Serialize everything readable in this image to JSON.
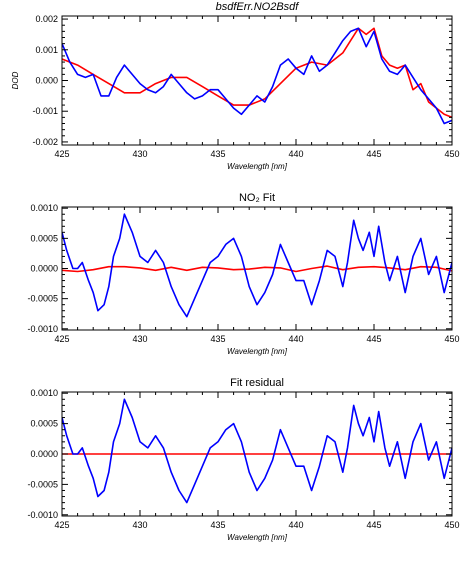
{
  "figure": {
    "background": "#ffffff",
    "axis_color": "#000000"
  },
  "chart_data": [
    {
      "type": "line",
      "title": "bsdfErr.NO2Bsdf",
      "title_italic": true,
      "xlabel": "Wavelength [nm]",
      "ylabel": "DOD",
      "xlim": [
        425,
        450
      ],
      "ylim": [
        -0.0021,
        0.0021
      ],
      "xticks": [
        425,
        430,
        435,
        440,
        445,
        450
      ],
      "xtick_labels": [
        "425",
        "430",
        "435",
        "440",
        "445",
        "450"
      ],
      "yticks": [
        -0.002,
        -0.001,
        0.0,
        0.001,
        0.002
      ],
      "ytick_labels": [
        "-0.002",
        "-0.001",
        "0.000",
        "0.001",
        "0.002"
      ],
      "grid": false,
      "series": [
        {
          "color": "#ff0000",
          "x": [
            425,
            426,
            427,
            428,
            429,
            430,
            431,
            432,
            433,
            434,
            435,
            436,
            437,
            438,
            439,
            440,
            441,
            442,
            442.5,
            443,
            443.5,
            444,
            444.5,
            445,
            445.5,
            446,
            446.5,
            447,
            447.5,
            448,
            448.5,
            449,
            449.5,
            450
          ],
          "y": [
            0.0007,
            0.0005,
            0.0002,
            -0.0001,
            -0.0004,
            -0.0004,
            -0.0001,
            0.0001,
            0.0001,
            -0.0002,
            -0.0005,
            -0.0008,
            -0.0008,
            -0.0006,
            -0.0001,
            0.0004,
            0.0006,
            0.0005,
            0.0007,
            0.0009,
            0.0013,
            0.0017,
            0.0015,
            0.0017,
            0.0008,
            0.0005,
            0.0004,
            0.0005,
            -0.0003,
            -0.0001,
            -0.0007,
            -0.0009,
            -0.0011,
            -0.0012
          ]
        },
        {
          "color": "#0000ff",
          "x": [
            425,
            425.5,
            426,
            426.5,
            427,
            427.5,
            428,
            428.5,
            429,
            429.5,
            430,
            430.5,
            431,
            431.5,
            432,
            432.5,
            433,
            433.5,
            434,
            434.5,
            435,
            435.5,
            436,
            436.5,
            437,
            437.5,
            438,
            438.5,
            439,
            439.5,
            440,
            440.5,
            441,
            441.5,
            442,
            442.5,
            443,
            443.5,
            444,
            444.5,
            445,
            445.5,
            446,
            446.5,
            447,
            447.5,
            448,
            448.5,
            449,
            449.5,
            450
          ],
          "y": [
            0.0012,
            0.0006,
            0.0002,
            0.0001,
            0.0002,
            -0.0005,
            -0.0005,
            0.0001,
            0.0005,
            0.0002,
            -0.0001,
            -0.0003,
            -0.0004,
            -0.0002,
            0.0002,
            -0.0001,
            -0.0004,
            -0.0006,
            -0.0005,
            -0.0003,
            -0.0003,
            -0.0006,
            -0.0009,
            -0.0011,
            -0.0008,
            -0.0005,
            -0.0007,
            -0.0002,
            0.0005,
            0.0007,
            0.0004,
            0.0002,
            0.0008,
            0.0003,
            0.0005,
            0.0009,
            0.0013,
            0.0016,
            0.0017,
            0.0011,
            0.0016,
            0.0007,
            0.0003,
            0.0002,
            0.0005,
            0.0001,
            -0.0003,
            -0.0006,
            -0.0009,
            -0.0014,
            -0.0013
          ]
        }
      ]
    },
    {
      "type": "line",
      "title": "NO₂ Fit",
      "title_italic": false,
      "xlabel": "Wavelength [nm]",
      "ylabel": "",
      "xlim": [
        425,
        450
      ],
      "ylim": [
        -0.00102,
        0.00102
      ],
      "xticks": [
        425,
        430,
        435,
        440,
        445,
        450
      ],
      "xtick_labels": [
        "425",
        "430",
        "435",
        "440",
        "445",
        "450"
      ],
      "yticks": [
        -0.001,
        -0.0005,
        0.0,
        0.0005,
        0.001
      ],
      "ytick_labels": [
        "-0.0010",
        "-0.0005",
        "0.0000",
        "0.0005",
        "0.0010"
      ],
      "grid": false,
      "series": [
        {
          "color": "#ff0000",
          "x": [
            425,
            426,
            427,
            428,
            429,
            430,
            431,
            432,
            433,
            434,
            435,
            436,
            437,
            438,
            439,
            440,
            441,
            442,
            443,
            444,
            445,
            446,
            447,
            448,
            449,
            450
          ],
          "y": [
            -3e-05,
            -5e-05,
            -2e-05,
            3e-05,
            3e-05,
            1e-05,
            -3e-05,
            2e-05,
            -3e-05,
            2e-05,
            1e-05,
            -2e-05,
            -1e-05,
            2e-05,
            1e-05,
            -5e-05,
            0.0,
            4e-05,
            -2e-05,
            2e-05,
            3e-05,
            1e-05,
            -2e-05,
            3e-05,
            2e-05,
            -4e-05
          ]
        },
        {
          "color": "#0000ff",
          "x": [
            425,
            425.3,
            425.7,
            426,
            426.3,
            426.7,
            427,
            427.3,
            427.7,
            428,
            428.3,
            428.7,
            429,
            429.5,
            430,
            430.5,
            431,
            431.5,
            432,
            432.5,
            433,
            433.5,
            434,
            434.5,
            435,
            435.5,
            436,
            436.5,
            437,
            437.5,
            438,
            438.5,
            439,
            439.5,
            440,
            440.5,
            441,
            441.5,
            442,
            442.5,
            443,
            443.3,
            443.7,
            444,
            444.3,
            444.7,
            445,
            445.3,
            445.7,
            446,
            446.5,
            447,
            447.5,
            448,
            448.5,
            449,
            449.5,
            450
          ],
          "y": [
            0.0006,
            0.0003,
            0.0,
            0.0,
            0.0001,
            -0.0002,
            -0.0004,
            -0.0007,
            -0.0006,
            -0.0003,
            0.0002,
            0.0005,
            0.0009,
            0.0006,
            0.0002,
            0.0001,
            0.0003,
            0.0001,
            -0.0003,
            -0.0006,
            -0.0008,
            -0.0005,
            -0.0002,
            0.0001,
            0.0002,
            0.0004,
            0.0005,
            0.0002,
            -0.0003,
            -0.0006,
            -0.0004,
            -0.0001,
            0.0004,
            0.0001,
            -0.0002,
            -0.0002,
            -0.0006,
            -0.0002,
            0.0003,
            0.0002,
            -0.0003,
            0.0001,
            0.0008,
            0.0005,
            0.0003,
            0.0006,
            0.0002,
            0.0007,
            0.0001,
            -0.0002,
            0.0002,
            -0.0004,
            0.0002,
            0.0005,
            -0.0001,
            0.0002,
            -0.0004,
            0.0001
          ]
        }
      ]
    },
    {
      "type": "line",
      "title": "Fit residual",
      "title_italic": false,
      "xlabel": "Wavelength [nm]",
      "ylabel": "",
      "xlim": [
        425,
        450
      ],
      "ylim": [
        -0.00102,
        0.00102
      ],
      "xticks": [
        425,
        430,
        435,
        440,
        445,
        450
      ],
      "xtick_labels": [
        "425",
        "430",
        "435",
        "440",
        "445",
        "450"
      ],
      "yticks": [
        -0.001,
        -0.0005,
        0.0,
        0.0005,
        0.001
      ],
      "ytick_labels": [
        "-0.0010",
        "-0.0005",
        "0.0000",
        "0.0005",
        "0.0010"
      ],
      "grid": false,
      "series": [
        {
          "color": "#ff0000",
          "x": [
            425,
            450
          ],
          "y": [
            0.0,
            0.0
          ]
        },
        {
          "color": "#0000ff",
          "x": [
            425,
            425.3,
            425.7,
            426,
            426.3,
            426.7,
            427,
            427.3,
            427.7,
            428,
            428.3,
            428.7,
            429,
            429.5,
            430,
            430.5,
            431,
            431.5,
            432,
            432.5,
            433,
            433.5,
            434,
            434.5,
            435,
            435.5,
            436,
            436.5,
            437,
            437.5,
            438,
            438.5,
            439,
            439.5,
            440,
            440.5,
            441,
            441.5,
            442,
            442.5,
            443,
            443.3,
            443.7,
            444,
            444.3,
            444.7,
            445,
            445.3,
            445.7,
            446,
            446.5,
            447,
            447.5,
            448,
            448.5,
            449,
            449.5,
            450
          ],
          "y": [
            0.0006,
            0.0003,
            0.0,
            0.0,
            0.0001,
            -0.0002,
            -0.0004,
            -0.0007,
            -0.0006,
            -0.0003,
            0.0002,
            0.0005,
            0.0009,
            0.0006,
            0.0002,
            0.0001,
            0.0003,
            0.0001,
            -0.0003,
            -0.0006,
            -0.0008,
            -0.0005,
            -0.0002,
            0.0001,
            0.0002,
            0.0004,
            0.0005,
            0.0002,
            -0.0003,
            -0.0006,
            -0.0004,
            -0.0001,
            0.0004,
            0.0001,
            -0.0002,
            -0.0002,
            -0.0006,
            -0.0002,
            0.0003,
            0.0002,
            -0.0003,
            0.0001,
            0.0008,
            0.0005,
            0.0003,
            0.0006,
            0.0002,
            0.0007,
            0.0001,
            -0.0002,
            0.0002,
            -0.0004,
            0.0002,
            0.0005,
            -0.0001,
            0.0002,
            -0.0004,
            0.0001
          ]
        }
      ]
    }
  ]
}
